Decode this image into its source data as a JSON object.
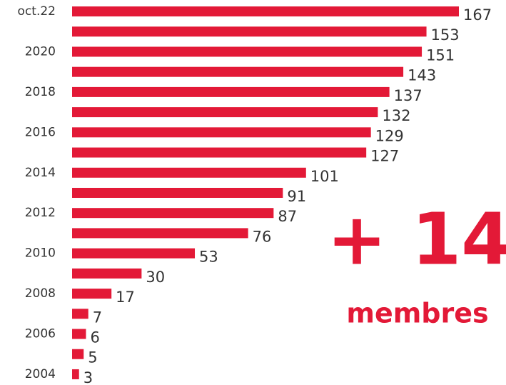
{
  "chart_data": {
    "type": "bar",
    "orientation": "horizontal",
    "categories": [
      "oct.22",
      null,
      "2020",
      null,
      "2018",
      null,
      "2016",
      null,
      "2014",
      null,
      "2012",
      null,
      "2010",
      null,
      "2008",
      null,
      "2006",
      null,
      "2004"
    ],
    "values": [
      167,
      153,
      151,
      143,
      137,
      132,
      129,
      127,
      101,
      91,
      87,
      76,
      53,
      30,
      17,
      7,
      6,
      5,
      3
    ],
    "color": "#e31937",
    "annotations": [
      "+ 14",
      "membres"
    ]
  }
}
